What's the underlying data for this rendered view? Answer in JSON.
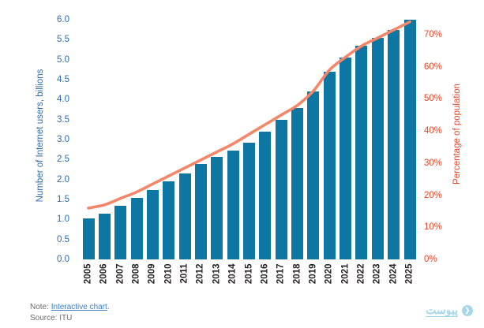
{
  "chart_data": {
    "type": "combo-bar-line",
    "categories": [
      "2005",
      "2006",
      "2007",
      "2008",
      "2009",
      "2010",
      "2011",
      "2012",
      "2013",
      "2014",
      "2015",
      "2016",
      "2017",
      "2018",
      "2019",
      "2020",
      "2021",
      "2022",
      "2023",
      "2024",
      "2025"
    ],
    "series": [
      {
        "name": "Number of Internet users, billions",
        "type": "bar",
        "axis": "left",
        "values": [
          1.02,
          1.15,
          1.35,
          1.53,
          1.73,
          1.95,
          2.15,
          2.38,
          2.56,
          2.73,
          2.93,
          3.2,
          3.5,
          3.78,
          4.2,
          4.7,
          5.05,
          5.35,
          5.55,
          5.75,
          6.0
        ]
      },
      {
        "name": "Percentage of population",
        "type": "line",
        "axis": "right",
        "values": [
          16,
          17,
          19,
          21,
          23.5,
          26,
          28.5,
          31,
          33.5,
          36,
          39,
          42,
          45,
          48,
          52.5,
          59,
          63,
          66.5,
          69,
          71.5,
          74
        ]
      }
    ],
    "left_axis": {
      "label": "Number of Internet users, billions",
      "range": [
        0,
        6
      ],
      "ticks": [
        "0.0",
        "0.5",
        "1.0",
        "1.5",
        "2.0",
        "2.5",
        "3.0",
        "3.5",
        "4.0",
        "4.5",
        "5.0",
        "5.5",
        "6.0"
      ]
    },
    "right_axis": {
      "label": "Percentage of population",
      "range": [
        0,
        70
      ],
      "ticks": [
        "0%",
        "10%",
        "20%",
        "30%",
        "40%",
        "50%",
        "60%",
        "70%"
      ]
    },
    "grid": false,
    "legend": "none"
  },
  "note": {
    "prefix": "Note: ",
    "link_text": "Interactive chart",
    "suffix": ".",
    "source": "Source: ITU"
  },
  "logo": {
    "text": "پیوست",
    "icon": "peivast-circle-icon"
  },
  "colors": {
    "bar": "#0d76a3",
    "line": "#f48769",
    "left_axis_text": "#2b6cad",
    "right_axis_text": "#e2482c",
    "year_labels": "#231f20",
    "note_text": "#6d6e70",
    "link": "#3f7ec0",
    "logo": "#a5d7e8"
  }
}
